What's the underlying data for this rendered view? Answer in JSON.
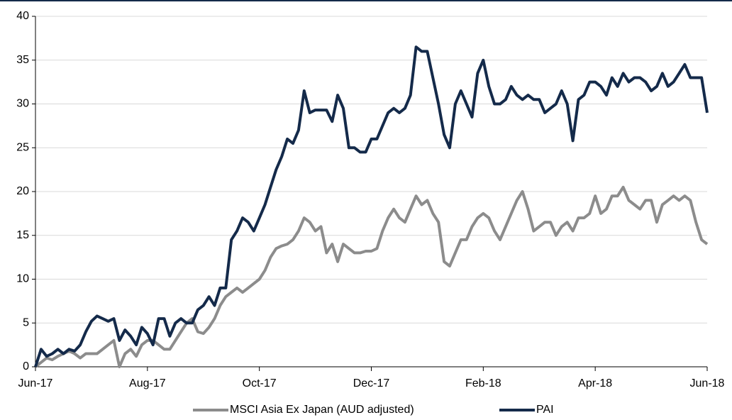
{
  "chart_data": {
    "type": "line",
    "categories": [
      "Jun-17",
      null,
      null,
      null,
      null,
      null,
      null,
      null,
      null,
      null,
      null,
      null,
      null,
      null,
      null,
      null,
      null,
      null,
      null,
      null,
      "Aug-17",
      null,
      null,
      null,
      null,
      null,
      null,
      null,
      null,
      null,
      null,
      null,
      null,
      null,
      null,
      null,
      null,
      null,
      null,
      null,
      "Oct-17",
      null,
      null,
      null,
      null,
      null,
      null,
      null,
      null,
      null,
      null,
      null,
      null,
      null,
      null,
      null,
      null,
      null,
      null,
      null,
      "Dec-17",
      null,
      null,
      null,
      null,
      null,
      null,
      null,
      null,
      null,
      null,
      null,
      null,
      null,
      null,
      null,
      null,
      null,
      null,
      null,
      "Feb-18",
      null,
      null,
      null,
      null,
      null,
      null,
      null,
      null,
      null,
      null,
      null,
      null,
      null,
      null,
      null,
      null,
      null,
      null,
      null,
      "Apr-18",
      null,
      null,
      null,
      null,
      null,
      null,
      null,
      null,
      null,
      null,
      null,
      null,
      null,
      null,
      null,
      null,
      null,
      null,
      null,
      "Jun-18"
    ],
    "series": [
      {
        "name": "MSCI Asia Ex Japan (AUD adjusted)",
        "color": "#8c8c8c",
        "values": [
          0,
          0.5,
          1,
          0.8,
          1.2,
          1.5,
          1.8,
          1.5,
          1,
          1.5,
          1.5,
          1.5,
          2,
          2.5,
          3,
          0,
          1.5,
          2,
          1.2,
          2.5,
          3,
          3,
          2.5,
          2,
          2,
          3,
          4,
          5,
          5.5,
          4,
          3.8,
          4.5,
          5.5,
          7,
          8,
          8.5,
          9,
          8.5,
          9,
          9.5,
          10,
          11,
          12.5,
          13.5,
          13.8,
          14,
          14.5,
          15.5,
          17,
          16.5,
          15.5,
          16,
          13,
          14,
          12,
          14,
          13.5,
          13,
          13,
          13.2,
          13.2,
          13.5,
          15.5,
          17,
          18,
          17,
          16.5,
          18,
          19.5,
          18.5,
          19,
          17.5,
          16.5,
          12,
          11.5,
          13,
          14.5,
          14.5,
          16,
          17,
          17.5,
          17,
          15.5,
          14.5,
          16,
          17.5,
          19,
          20,
          18,
          15.5,
          16,
          16.5,
          16.5,
          15,
          16,
          16.5,
          15.5,
          17,
          17,
          17.5,
          19.5,
          17.5,
          18,
          19.5,
          19.5,
          20.5,
          19,
          18.5,
          18,
          19,
          19,
          16.5,
          18.5,
          19,
          19.5,
          19,
          19.5,
          19,
          16.5,
          14.5,
          14
        ]
      },
      {
        "name": "PAI",
        "color": "#142a4a",
        "values": [
          0,
          2,
          1.2,
          1.5,
          2,
          1.5,
          2,
          1.8,
          2.5,
          4,
          5.2,
          5.8,
          5.5,
          5.2,
          5.5,
          3,
          4.2,
          3.5,
          2.5,
          4.5,
          3.8,
          2.5,
          5.5,
          5.5,
          3.5,
          5,
          5.5,
          5,
          5,
          6.5,
          7,
          8,
          7,
          9,
          9,
          14.5,
          15.5,
          17,
          16.5,
          15.5,
          17,
          18.5,
          20.5,
          22.5,
          24,
          26,
          25.5,
          27,
          31.5,
          29,
          29.3,
          29.3,
          29.3,
          28,
          31,
          29.5,
          25,
          25,
          24.5,
          24.5,
          26,
          26,
          27.5,
          29,
          29.5,
          29,
          29.5,
          31,
          36.5,
          36,
          36,
          33,
          30,
          26.5,
          25,
          30,
          31.5,
          30,
          28.5,
          33.5,
          35,
          32,
          30,
          30,
          30.5,
          32,
          31,
          30.5,
          31,
          30.5,
          30.5,
          29,
          29.5,
          30,
          31.5,
          30,
          25.8,
          30.5,
          31,
          32.5,
          32.5,
          32,
          31,
          33,
          32,
          33.5,
          32.5,
          33,
          33,
          32.5,
          31.5,
          32,
          33.5,
          32,
          32.5,
          33.5,
          34.5,
          33,
          33,
          33,
          29
        ]
      }
    ],
    "ylim": [
      0,
      40
    ],
    "yticks": [
      0,
      5,
      10,
      15,
      20,
      25,
      30,
      35,
      40
    ],
    "grid": true
  }
}
